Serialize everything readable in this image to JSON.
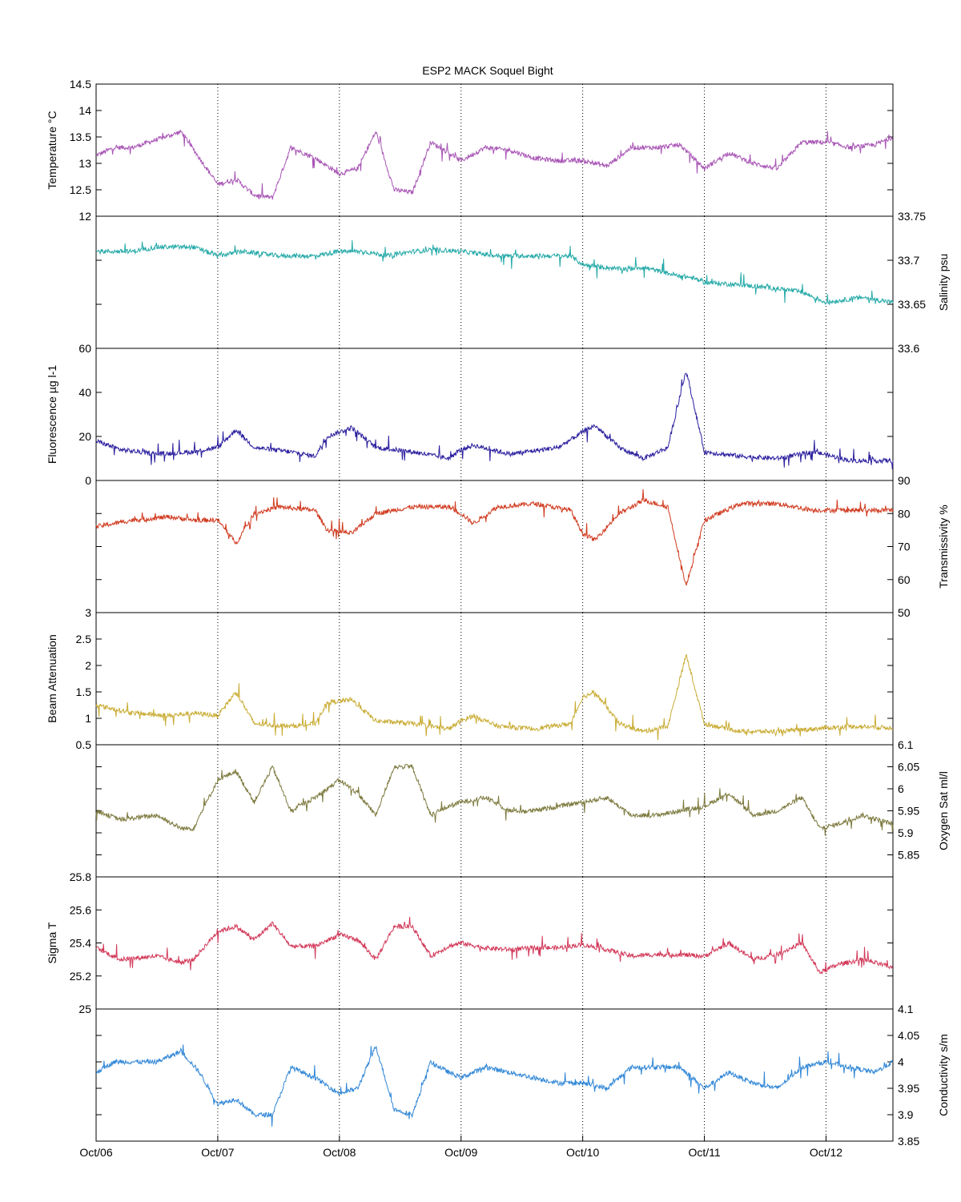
{
  "title": "ESP2 MACK  Soquel Bight",
  "x_axis": {
    "type": "date",
    "range": [
      "Oct/06",
      "Oct/12 + 0.55 yr"
    ],
    "tick_labels": [
      "Oct/06",
      "Oct/07",
      "Oct/08",
      "Oct/09",
      "Oct/10",
      "Oct/11",
      "Oct/12"
    ]
  },
  "chart_data": [
    {
      "type": "line",
      "ylabel": "Temperature °C",
      "ylabel_side": "left",
      "color": "#a855b5",
      "ylim": [
        12,
        14.5
      ],
      "yticks": [
        12,
        12.5,
        13,
        13.5,
        14,
        14.5
      ],
      "ytick_labels": [
        "12",
        "12.5",
        "13",
        "13.5",
        "14",
        "14.5"
      ],
      "grid": "vertical-dotted",
      "x": [
        0,
        0.15,
        0.3,
        0.5,
        0.7,
        0.85,
        1.0,
        1.15,
        1.3,
        1.45,
        1.6,
        1.8,
        2.0,
        2.15,
        2.3,
        2.45,
        2.6,
        2.75,
        2.9,
        3.0,
        3.2,
        3.4,
        3.6,
        3.8,
        4.0,
        4.2,
        4.4,
        4.6,
        4.8,
        5.0,
        5.2,
        5.4,
        5.6,
        5.8,
        6.0,
        6.2,
        6.4,
        6.55
      ],
      "values": [
        13.15,
        13.3,
        13.3,
        13.45,
        13.6,
        13.1,
        12.6,
        12.7,
        12.4,
        12.35,
        13.3,
        13.1,
        12.8,
        12.9,
        13.6,
        12.5,
        12.45,
        13.4,
        13.2,
        13.05,
        13.3,
        13.25,
        13.1,
        13.05,
        13.05,
        12.95,
        13.3,
        13.3,
        13.35,
        12.9,
        13.2,
        13.0,
        12.9,
        13.4,
        13.4,
        13.3,
        13.35,
        13.5
      ]
    },
    {
      "type": "line",
      "ylabel": "Salinity psu",
      "ylabel_side": "right",
      "color": "#26aaa8",
      "ylim": [
        33.6,
        33.75
      ],
      "yticks": [
        33.6,
        33.65,
        33.7,
        33.75
      ],
      "ytick_labels": [
        "33.6",
        "33.65",
        "33.7",
        "33.75"
      ],
      "grid": "vertical-dotted",
      "x": [
        0,
        0.3,
        0.5,
        0.8,
        1.0,
        1.2,
        1.5,
        1.8,
        2.0,
        2.2,
        2.4,
        2.6,
        2.8,
        3.0,
        3.3,
        3.6,
        3.9,
        4.0,
        4.3,
        4.5,
        4.7,
        4.9,
        5.0,
        5.3,
        5.6,
        5.8,
        6.0,
        6.3,
        6.55
      ],
      "values": [
        33.71,
        33.71,
        33.715,
        33.715,
        33.705,
        33.71,
        33.705,
        33.705,
        33.71,
        33.71,
        33.705,
        33.71,
        33.712,
        33.71,
        33.705,
        33.705,
        33.705,
        33.695,
        33.69,
        33.692,
        33.685,
        33.68,
        33.675,
        33.672,
        33.668,
        33.664,
        33.652,
        33.658,
        33.652
      ]
    },
    {
      "type": "line",
      "ylabel": "Fluorescence µg l-1",
      "ylabel_side": "left",
      "color": "#2b1f9e",
      "ylim": [
        0,
        60
      ],
      "yticks": [
        0,
        20,
        40,
        60
      ],
      "ytick_labels": [
        "0",
        "20",
        "40",
        "60"
      ],
      "grid": "vertical-dotted",
      "x": [
        0,
        0.2,
        0.5,
        0.8,
        1.0,
        1.15,
        1.3,
        1.6,
        1.8,
        1.9,
        2.1,
        2.3,
        2.6,
        2.9,
        3.0,
        3.1,
        3.4,
        3.8,
        4.0,
        4.1,
        4.3,
        4.5,
        4.7,
        4.85,
        5.0,
        5.3,
        5.6,
        5.9,
        6.2,
        6.55
      ],
      "values": [
        18,
        14,
        12,
        13,
        15,
        23,
        15,
        13,
        11,
        20,
        24,
        15,
        13,
        10,
        14,
        16,
        12,
        15,
        22,
        25,
        15,
        10,
        15,
        50,
        13,
        11,
        10,
        13,
        9,
        9
      ]
    },
    {
      "type": "line",
      "ylabel": "Transmissivity %",
      "ylabel_side": "right",
      "color": "#d03a1f",
      "ylim": [
        50,
        90
      ],
      "yticks": [
        50,
        60,
        70,
        80,
        90
      ],
      "ytick_labels": [
        "50",
        "60",
        "70",
        "80",
        "90"
      ],
      "grid": "vertical-dotted",
      "x": [
        0,
        0.3,
        0.6,
        0.8,
        1.0,
        1.15,
        1.3,
        1.5,
        1.8,
        1.9,
        2.1,
        2.3,
        2.6,
        2.9,
        3.0,
        3.1,
        3.3,
        3.6,
        3.9,
        4.0,
        4.1,
        4.3,
        4.5,
        4.7,
        4.85,
        5.0,
        5.3,
        5.6,
        5.9,
        6.2,
        6.55
      ],
      "values": [
        76,
        78,
        79,
        78,
        78,
        71,
        80,
        82,
        81,
        75,
        74,
        80,
        82,
        82,
        80,
        77,
        82,
        83,
        81,
        74,
        72,
        80,
        84,
        82,
        58,
        78,
        83,
        83,
        81,
        81,
        81
      ]
    },
    {
      "type": "line",
      "ylabel": "Beam Attenuation",
      "ylabel_side": "left",
      "color": "#c9ac34",
      "ylim": [
        0.5,
        3
      ],
      "yticks": [
        0.5,
        1,
        1.5,
        2,
        2.5,
        3
      ],
      "ytick_labels": [
        "0.5",
        "1",
        "1.5",
        "2",
        "2.5",
        "3"
      ],
      "grid": "vertical-dotted",
      "x": [
        0,
        0.3,
        0.6,
        0.8,
        1.0,
        1.15,
        1.3,
        1.6,
        1.8,
        1.9,
        2.1,
        2.3,
        2.6,
        2.9,
        3.0,
        3.1,
        3.3,
        3.6,
        3.9,
        4.0,
        4.1,
        4.3,
        4.5,
        4.7,
        4.85,
        5.0,
        5.3,
        5.6,
        5.9,
        6.2,
        6.55
      ],
      "values": [
        1.25,
        1.1,
        1.05,
        1.1,
        1.05,
        1.5,
        0.9,
        0.85,
        0.9,
        1.3,
        1.35,
        0.95,
        0.9,
        0.8,
        0.95,
        1.05,
        0.85,
        0.8,
        0.9,
        1.4,
        1.5,
        0.9,
        0.75,
        0.85,
        2.2,
        0.9,
        0.75,
        0.75,
        0.8,
        0.85,
        0.82
      ]
    },
    {
      "type": "line",
      "ylabel": "Oxygen Sat ml/l",
      "ylabel_side": "right",
      "color": "#7d7a3f",
      "ylim": [
        5.8,
        6.1
      ],
      "yticks": [
        5.85,
        5.9,
        5.95,
        6,
        6.05,
        6.1
      ],
      "ytick_labels": [
        "5.85",
        "5.9",
        "5.95",
        "6",
        "6.05",
        "6.1"
      ],
      "grid": "vertical-dotted",
      "x": [
        0,
        0.2,
        0.5,
        0.7,
        0.8,
        1.0,
        1.15,
        1.3,
        1.45,
        1.6,
        1.8,
        2.0,
        2.15,
        2.3,
        2.45,
        2.6,
        2.75,
        2.9,
        3.0,
        3.2,
        3.4,
        3.6,
        3.8,
        4.0,
        4.2,
        4.4,
        4.6,
        4.8,
        5.0,
        5.2,
        5.4,
        5.6,
        5.8,
        5.95,
        6.1,
        6.3,
        6.55
      ],
      "values": [
        5.95,
        5.93,
        5.94,
        5.91,
        5.91,
        6.02,
        6.04,
        5.97,
        6.05,
        5.95,
        5.98,
        6.02,
        5.99,
        5.94,
        6.05,
        6.05,
        5.94,
        5.96,
        5.97,
        5.98,
        5.95,
        5.95,
        5.96,
        5.97,
        5.98,
        5.94,
        5.94,
        5.95,
        5.96,
        5.99,
        5.94,
        5.95,
        5.98,
        5.91,
        5.92,
        5.94,
        5.92
      ]
    },
    {
      "type": "line",
      "ylabel": "Sigma T",
      "ylabel_side": "left",
      "color": "#d23a5a",
      "ylim": [
        25,
        25.8
      ],
      "yticks": [
        25,
        25.2,
        25.4,
        25.6,
        25.8
      ],
      "ytick_labels": [
        "25",
        "25.2",
        "25.4",
        "25.6",
        "25.8"
      ],
      "grid": "vertical-dotted",
      "x": [
        0,
        0.2,
        0.5,
        0.7,
        0.8,
        1.0,
        1.15,
        1.3,
        1.45,
        1.6,
        1.8,
        2.0,
        2.15,
        2.3,
        2.45,
        2.6,
        2.75,
        2.9,
        3.0,
        3.2,
        3.4,
        3.6,
        3.8,
        4.0,
        4.2,
        4.4,
        4.6,
        4.8,
        5.0,
        5.2,
        5.4,
        5.6,
        5.8,
        5.95,
        6.1,
        6.3,
        6.55
      ],
      "values": [
        25.37,
        25.3,
        25.32,
        25.28,
        25.3,
        25.47,
        25.5,
        25.42,
        25.52,
        25.38,
        25.38,
        25.45,
        25.42,
        25.3,
        25.5,
        25.5,
        25.32,
        25.38,
        25.4,
        25.37,
        25.36,
        25.37,
        25.37,
        25.39,
        25.36,
        25.32,
        25.33,
        25.33,
        25.32,
        25.4,
        25.3,
        25.33,
        25.4,
        25.22,
        25.27,
        25.3,
        25.25
      ]
    },
    {
      "type": "line",
      "ylabel": "Conductivity s/m",
      "ylabel_side": "right",
      "color": "#2f86d6",
      "ylim": [
        3.85,
        4.1
      ],
      "yticks": [
        3.85,
        3.9,
        3.95,
        4,
        4.05,
        4.1
      ],
      "ytick_labels": [
        "3.85",
        "3.9",
        "3.95",
        "4",
        "4.05",
        "4.1"
      ],
      "grid": "vertical-dotted",
      "x": [
        0,
        0.15,
        0.3,
        0.5,
        0.7,
        0.85,
        1.0,
        1.15,
        1.3,
        1.45,
        1.6,
        1.8,
        2.0,
        2.15,
        2.3,
        2.45,
        2.6,
        2.75,
        2.9,
        3.0,
        3.2,
        3.4,
        3.6,
        3.8,
        4.0,
        4.2,
        4.4,
        4.6,
        4.8,
        5.0,
        5.2,
        5.4,
        5.6,
        5.8,
        6.0,
        6.2,
        6.4,
        6.55
      ],
      "values": [
        3.98,
        4.0,
        4.0,
        4.0,
        4.02,
        3.98,
        3.92,
        3.93,
        3.9,
        3.9,
        3.99,
        3.97,
        3.94,
        3.95,
        4.03,
        3.91,
        3.9,
        4.0,
        3.98,
        3.97,
        3.99,
        3.98,
        3.97,
        3.96,
        3.96,
        3.95,
        3.99,
        3.99,
        3.99,
        3.95,
        3.98,
        3.96,
        3.95,
        3.99,
        4.0,
        3.99,
        3.98,
        4.0
      ]
    }
  ]
}
